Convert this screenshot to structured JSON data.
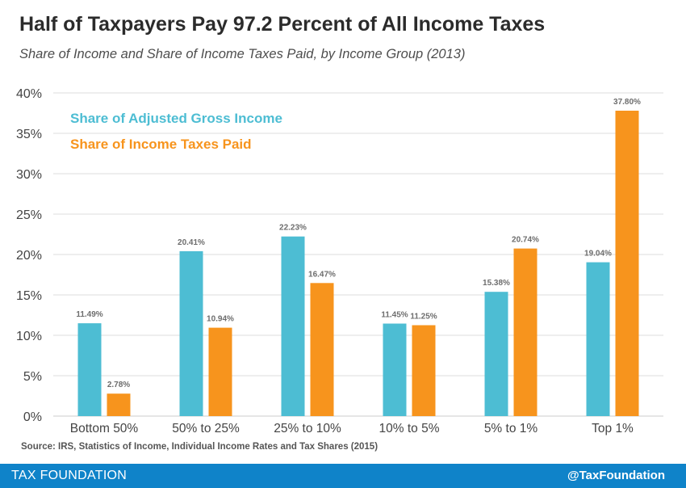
{
  "header": {
    "title": "Half of Taxpayers Pay 97.2 Percent of All Income Taxes",
    "subtitle": "Share of Income and Share of Income Taxes Paid, by Income Group (2013)"
  },
  "source": "Source: IRS, Statistics of Income, Individual Income Rates and Tax Shares (2015)",
  "footer": {
    "brand": "TAX FOUNDATION",
    "handle": "@TaxFoundation"
  },
  "colors": {
    "income": "#4dbdd3",
    "taxes": "#f7941d",
    "footer": "#0f83c9"
  },
  "chart_data": {
    "type": "bar",
    "title": "Half of Taxpayers Pay 97.2 Percent of All Income Taxes",
    "subtitle": "Share of Income and Share of Income Taxes Paid, by Income Group (2013)",
    "xlabel": "",
    "ylabel": "",
    "categories": [
      "Bottom 50%",
      "50% to 25%",
      "25% to 10%",
      "10% to 5%",
      "5% to 1%",
      "Top 1%"
    ],
    "series": [
      {
        "name": "Share of Adjusted Gross Income",
        "color": "#4dbdd3",
        "values": [
          11.49,
          20.41,
          22.23,
          11.45,
          15.38,
          19.04
        ],
        "labels": [
          "11.49%",
          "20.41%",
          "22.23%",
          "11.45%",
          "15.38%",
          "19.04%"
        ]
      },
      {
        "name": "Share of Income Taxes Paid",
        "color": "#f7941d",
        "values": [
          2.78,
          10.94,
          16.47,
          11.25,
          20.74,
          37.8
        ],
        "labels": [
          "2.78%",
          "10.94%",
          "16.47%",
          "11.25%",
          "20.74%",
          "37.80%"
        ]
      }
    ],
    "yticks": [
      0,
      5,
      10,
      15,
      20,
      25,
      30,
      35,
      40
    ],
    "ytick_labels": [
      "0%",
      "5%",
      "10%",
      "15%",
      "20%",
      "25%",
      "30%",
      "35%",
      "40%"
    ],
    "ylim": [
      0,
      40
    ],
    "grid": true,
    "legend_position": "top-left"
  }
}
